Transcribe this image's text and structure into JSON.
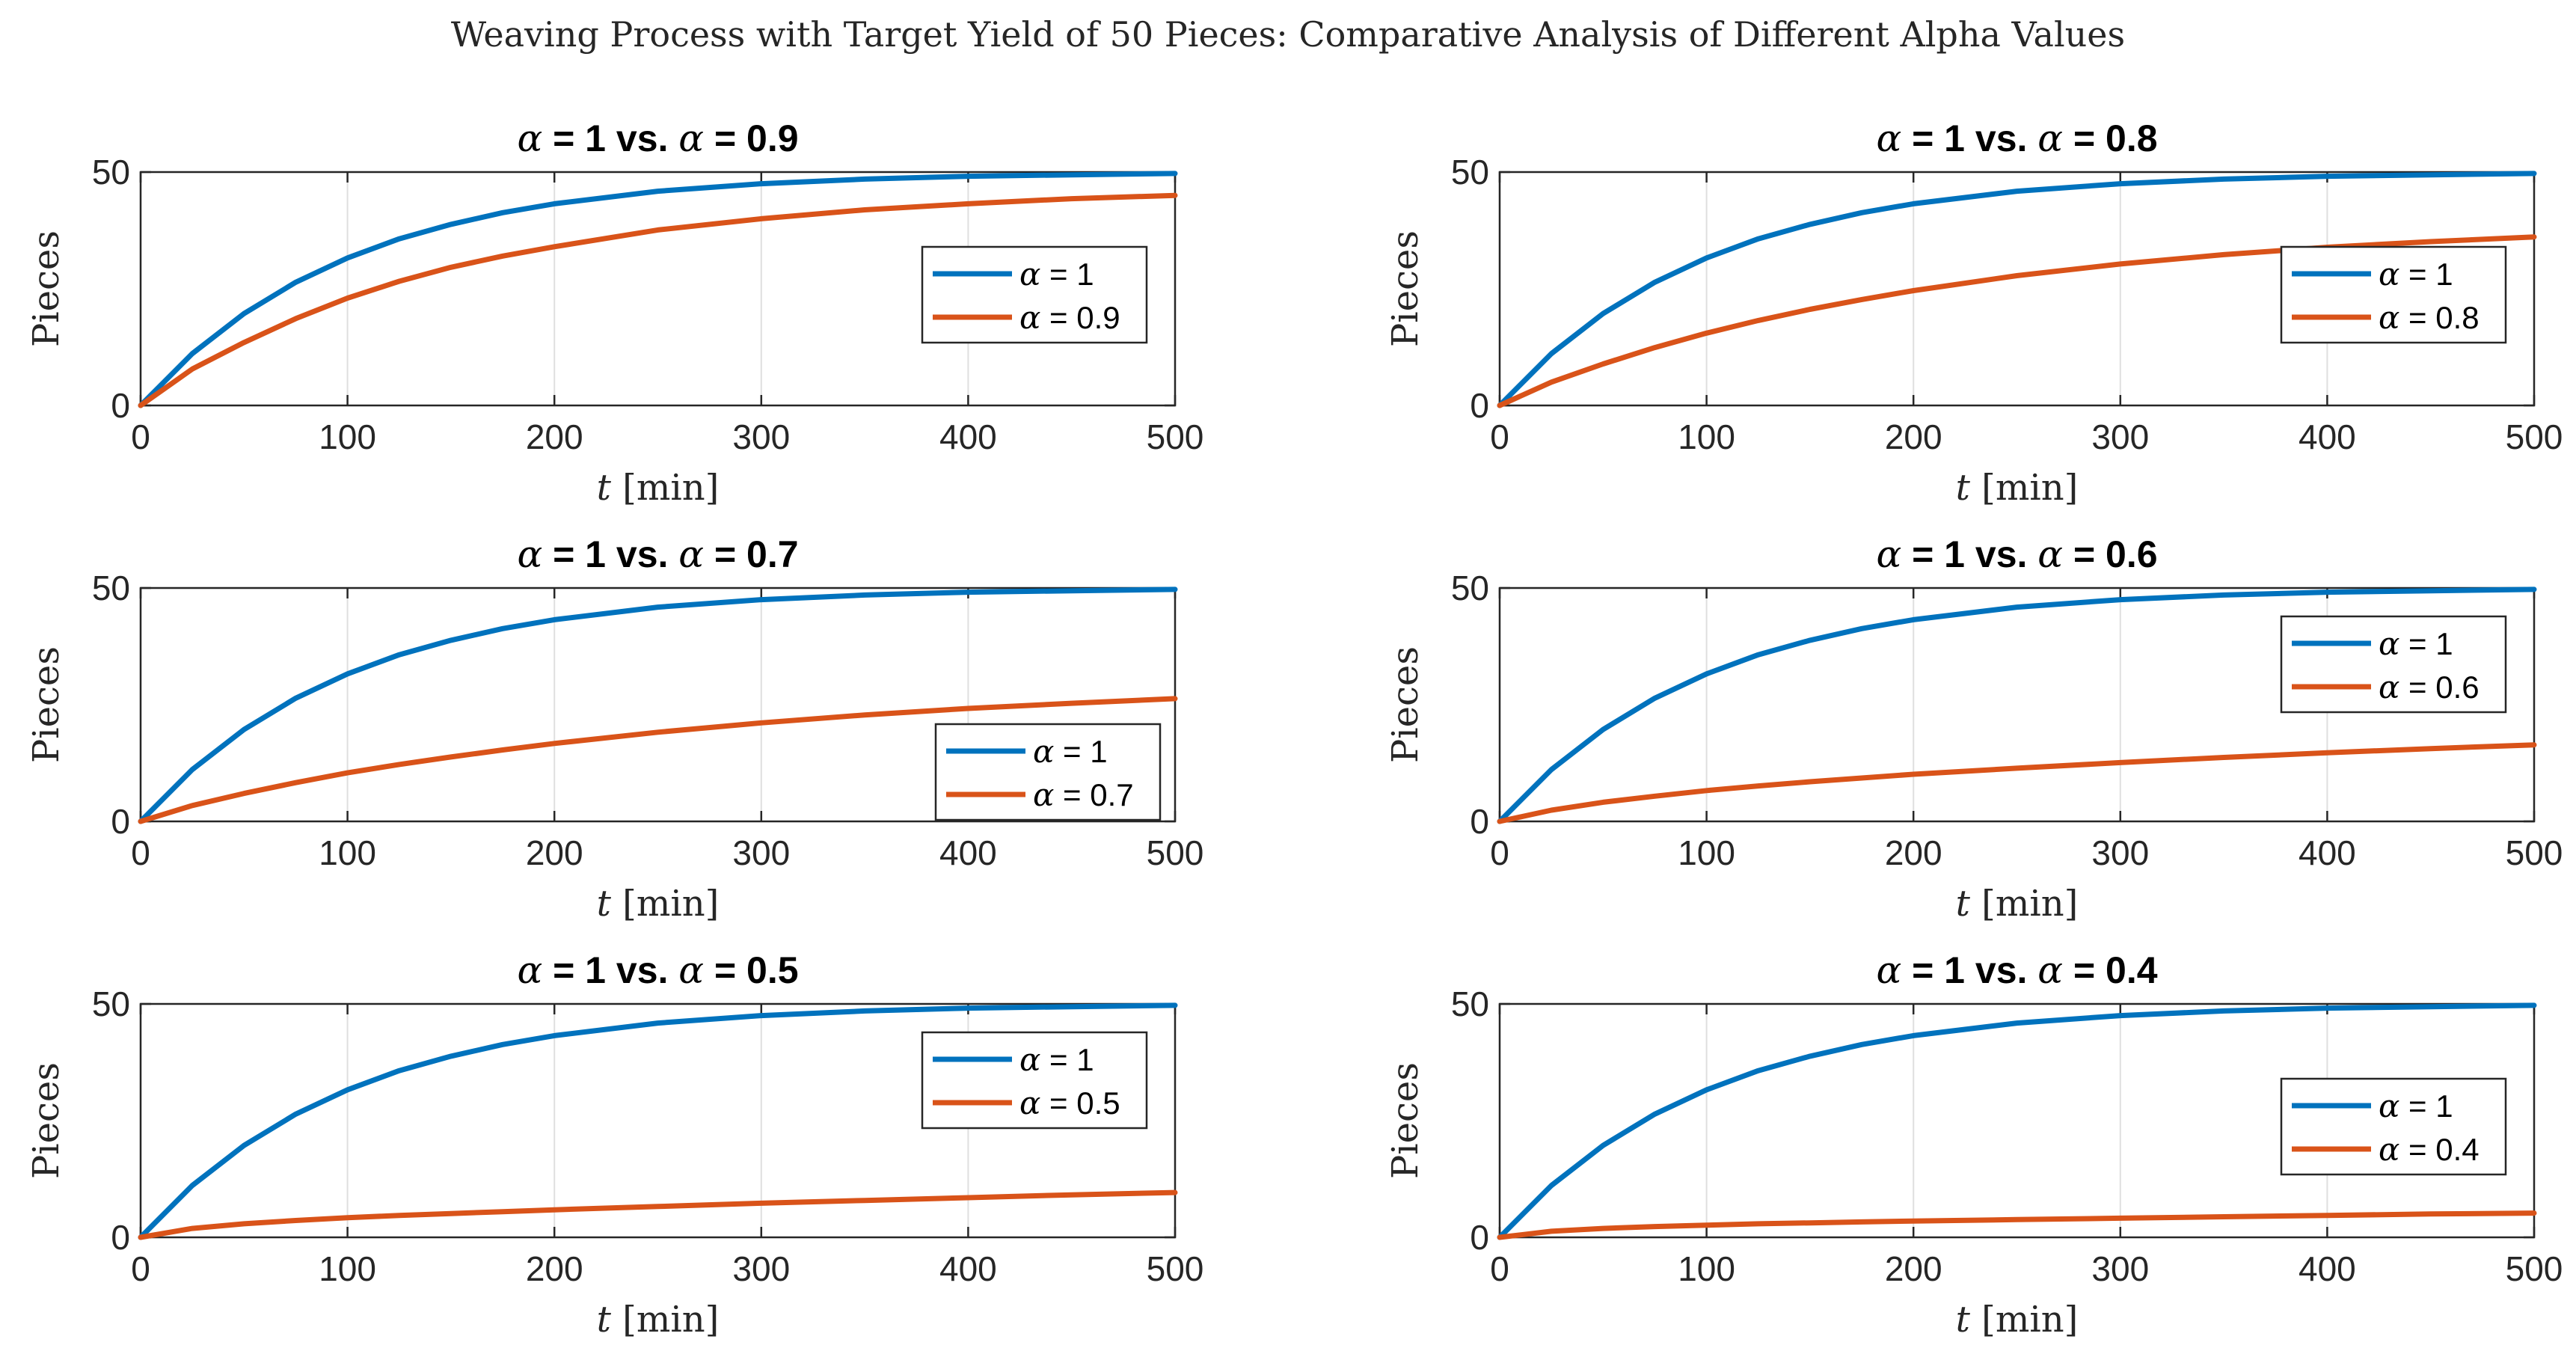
{
  "figure_title": "Weaving Process with Target Yield of 50 Pieces: Comparative Analysis of Different Alpha Values",
  "colors": {
    "alpha_1": "#0072bd",
    "alpha_other": "#d95319"
  },
  "chart_data": [
    {
      "type": "line",
      "title": "α = 1 vs.  α = 0.9",
      "title_prefix": "α",
      "title_middle": " = 1 vs.  ",
      "title_greek": "α",
      "title_suffix": " = 0.9",
      "xlabel": "t [min]",
      "xlabel_var": "t",
      "xlabel_unit": " [min]",
      "ylabel": "Pieces",
      "xlim": [
        0,
        500
      ],
      "ylim": [
        0,
        50
      ],
      "xticks": [
        0,
        100,
        200,
        300,
        400,
        500
      ],
      "yticks": [
        0,
        50
      ],
      "grid": "x",
      "legend_position": "east",
      "series": [
        {
          "name": "α = 1",
          "name_greek": "α",
          "name_rest": " = 1",
          "x": [
            0,
            25,
            50,
            75,
            100,
            125,
            150,
            175,
            200,
            250,
            300,
            350,
            400,
            450,
            500
          ],
          "values": [
            0,
            11.1,
            19.7,
            26.4,
            31.6,
            35.7,
            38.8,
            41.3,
            43.2,
            45.9,
            47.5,
            48.5,
            49.1,
            49.4,
            49.7
          ]
        },
        {
          "name": "α = 0.9",
          "name_greek": "α",
          "name_rest": " = 0.9",
          "x": [
            0,
            25,
            50,
            75,
            100,
            125,
            150,
            175,
            200,
            250,
            300,
            350,
            400,
            450,
            500
          ],
          "values": [
            0,
            7.8,
            13.5,
            18.6,
            23.0,
            26.6,
            29.6,
            32.0,
            34.0,
            37.6,
            40.0,
            41.9,
            43.2,
            44.3,
            45.0
          ]
        }
      ]
    },
    {
      "type": "line",
      "title": "α = 1 vs.  α = 0.8",
      "title_prefix": "α",
      "title_middle": " = 1 vs.  ",
      "title_greek": "α",
      "title_suffix": " = 0.8",
      "xlabel": "t [min]",
      "xlabel_var": "t",
      "xlabel_unit": " [min]",
      "ylabel": "Pieces",
      "xlim": [
        0,
        500
      ],
      "ylim": [
        0,
        50
      ],
      "xticks": [
        0,
        100,
        200,
        300,
        400,
        500
      ],
      "yticks": [
        0,
        50
      ],
      "grid": "x",
      "legend_position": "east",
      "series": [
        {
          "name": "α = 1",
          "name_greek": "α",
          "name_rest": " = 1",
          "x": [
            0,
            25,
            50,
            75,
            100,
            125,
            150,
            175,
            200,
            250,
            300,
            350,
            400,
            450,
            500
          ],
          "values": [
            0,
            11.1,
            19.7,
            26.4,
            31.6,
            35.7,
            38.8,
            41.3,
            43.2,
            45.9,
            47.5,
            48.5,
            49.1,
            49.4,
            49.7
          ]
        },
        {
          "name": "α = 0.8",
          "name_greek": "α",
          "name_rest": " = 0.8",
          "x": [
            0,
            25,
            50,
            75,
            100,
            125,
            150,
            175,
            200,
            250,
            300,
            350,
            400,
            450,
            500
          ],
          "values": [
            0,
            5.0,
            8.9,
            12.4,
            15.5,
            18.2,
            20.6,
            22.7,
            24.6,
            27.8,
            30.3,
            32.3,
            33.9,
            35.1,
            36.1
          ]
        }
      ]
    },
    {
      "type": "line",
      "title": "α = 1 vs.  α = 0.7",
      "title_prefix": "α",
      "title_middle": " = 1 vs.  ",
      "title_greek": "α",
      "title_suffix": " = 0.7",
      "xlabel": "t [min]",
      "xlabel_var": "t",
      "xlabel_unit": " [min]",
      "ylabel": "Pieces",
      "xlim": [
        0,
        500
      ],
      "ylim": [
        0,
        50
      ],
      "xticks": [
        0,
        100,
        200,
        300,
        400,
        500
      ],
      "yticks": [
        0,
        50
      ],
      "grid": "x",
      "legend_position": "southeast",
      "series": [
        {
          "name": "α = 1",
          "name_greek": "α",
          "name_rest": " = 1",
          "x": [
            0,
            25,
            50,
            75,
            100,
            125,
            150,
            175,
            200,
            250,
            300,
            350,
            400,
            450,
            500
          ],
          "values": [
            0,
            11.1,
            19.7,
            26.4,
            31.6,
            35.7,
            38.8,
            41.3,
            43.2,
            45.9,
            47.5,
            48.5,
            49.1,
            49.4,
            49.7
          ]
        },
        {
          "name": "α = 0.7",
          "name_greek": "α",
          "name_rest": " = 0.7",
          "x": [
            0,
            25,
            50,
            75,
            100,
            125,
            150,
            175,
            200,
            250,
            300,
            350,
            400,
            450,
            500
          ],
          "values": [
            0,
            3.4,
            6.0,
            8.3,
            10.4,
            12.2,
            13.8,
            15.3,
            16.7,
            19.1,
            21.1,
            22.8,
            24.2,
            25.3,
            26.3
          ]
        }
      ]
    },
    {
      "type": "line",
      "title": "α = 1 vs.  α = 0.6",
      "title_prefix": "α",
      "title_middle": " = 1 vs.  ",
      "title_greek": "α",
      "title_suffix": " = 0.6",
      "xlabel": "t [min]",
      "xlabel_var": "t",
      "xlabel_unit": " [min]",
      "ylabel": "Pieces",
      "xlim": [
        0,
        500
      ],
      "ylim": [
        0,
        50
      ],
      "xticks": [
        0,
        100,
        200,
        300,
        400,
        500
      ],
      "yticks": [
        0,
        50
      ],
      "grid": "x",
      "legend_position": "northeast",
      "series": [
        {
          "name": "α = 1",
          "name_greek": "α",
          "name_rest": " = 1",
          "x": [
            0,
            25,
            50,
            75,
            100,
            125,
            150,
            175,
            200,
            250,
            300,
            350,
            400,
            450,
            500
          ],
          "values": [
            0,
            11.1,
            19.7,
            26.4,
            31.6,
            35.7,
            38.8,
            41.3,
            43.2,
            45.9,
            47.5,
            48.5,
            49.1,
            49.4,
            49.7
          ]
        },
        {
          "name": "α = 0.6",
          "name_greek": "α",
          "name_rest": " = 0.6",
          "x": [
            0,
            25,
            50,
            75,
            100,
            125,
            150,
            175,
            200,
            250,
            300,
            350,
            400,
            450,
            500
          ],
          "values": [
            0,
            2.4,
            4.1,
            5.4,
            6.6,
            7.6,
            8.5,
            9.3,
            10.1,
            11.4,
            12.6,
            13.7,
            14.7,
            15.6,
            16.4
          ]
        }
      ]
    },
    {
      "type": "line",
      "title": "α = 1 vs.  α = 0.5",
      "title_prefix": "α",
      "title_middle": " = 1 vs.  ",
      "title_greek": "α",
      "title_suffix": " = 0.5",
      "xlabel": "t [min]",
      "xlabel_var": "t",
      "xlabel_unit": " [min]",
      "ylabel": "Pieces",
      "xlim": [
        0,
        500
      ],
      "ylim": [
        0,
        50
      ],
      "xticks": [
        0,
        100,
        200,
        300,
        400,
        500
      ],
      "yticks": [
        0,
        50
      ],
      "grid": "x",
      "legend_position": "northeast",
      "series": [
        {
          "name": "α = 1",
          "name_greek": "α",
          "name_rest": " = 1",
          "x": [
            0,
            25,
            50,
            75,
            100,
            125,
            150,
            175,
            200,
            250,
            300,
            350,
            400,
            450,
            500
          ],
          "values": [
            0,
            11.1,
            19.7,
            26.4,
            31.6,
            35.7,
            38.8,
            41.3,
            43.2,
            45.9,
            47.5,
            48.5,
            49.1,
            49.4,
            49.7
          ]
        },
        {
          "name": "α = 0.5",
          "name_greek": "α",
          "name_rest": " = 0.5",
          "x": [
            0,
            25,
            50,
            75,
            100,
            125,
            150,
            175,
            200,
            250,
            300,
            350,
            400,
            450,
            500
          ],
          "values": [
            0,
            1.9,
            2.9,
            3.6,
            4.2,
            4.7,
            5.1,
            5.5,
            5.9,
            6.6,
            7.3,
            7.9,
            8.5,
            9.1,
            9.6
          ]
        }
      ]
    },
    {
      "type": "line",
      "title": "α = 1 vs.  α = 0.4",
      "title_prefix": "α",
      "title_middle": " = 1 vs.  ",
      "title_greek": "α",
      "title_suffix": " = 0.4",
      "xlabel": "t [min]",
      "xlabel_var": "t",
      "xlabel_unit": " [min]",
      "ylabel": "Pieces",
      "xlim": [
        0,
        500
      ],
      "ylim": [
        0,
        50
      ],
      "xticks": [
        0,
        100,
        200,
        300,
        400,
        500
      ],
      "yticks": [
        0,
        50
      ],
      "grid": "x",
      "legend_position": "east",
      "series": [
        {
          "name": "α = 1",
          "name_greek": "α",
          "name_rest": " = 1",
          "x": [
            0,
            25,
            50,
            75,
            100,
            125,
            150,
            175,
            200,
            250,
            300,
            350,
            400,
            450,
            500
          ],
          "values": [
            0,
            11.1,
            19.7,
            26.4,
            31.6,
            35.7,
            38.8,
            41.3,
            43.2,
            45.9,
            47.5,
            48.5,
            49.1,
            49.4,
            49.7
          ]
        },
        {
          "name": "α = 0.4",
          "name_greek": "α",
          "name_rest": " = 0.4",
          "x": [
            0,
            25,
            50,
            75,
            100,
            125,
            150,
            175,
            200,
            250,
            300,
            350,
            400,
            450,
            500
          ],
          "values": [
            0,
            1.3,
            1.9,
            2.3,
            2.6,
            2.9,
            3.1,
            3.3,
            3.5,
            3.8,
            4.1,
            4.4,
            4.7,
            5.0,
            5.2
          ]
        }
      ]
    }
  ]
}
